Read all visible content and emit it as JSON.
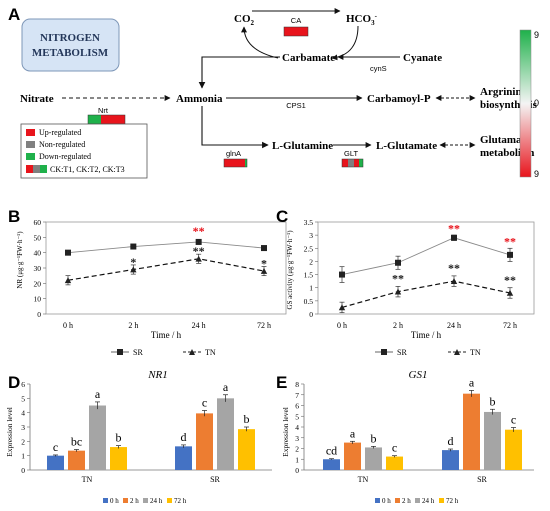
{
  "panel_a": {
    "label": "A",
    "title_line1": "NITROGEN",
    "title_line2": "METABOLISM",
    "nodes": {
      "co2": "CO",
      "co2_sub": "2",
      "hco3": "HCO",
      "hco3_sub": "3",
      "hco3_sup": "-",
      "carbamate": "Carbamate",
      "cyanate": "Cyanate",
      "nitrate": "Nitrate",
      "ammonia": "Ammonia",
      "carbamoyl_p": "Carbamoyl-P",
      "arginine_1": "Argrinine",
      "arginine_2": "biosynthesis",
      "l_glutamine": "L-Glutamine",
      "l_glutamate": "L-Glutamate",
      "glutamate_1": "Glutamate",
      "glutamate_2": "metabolism"
    },
    "enzymes": {
      "ca": "CA",
      "cyns": "cynS",
      "nrt": "Nrt",
      "cps1": "CPS1",
      "glna": "glnA",
      "glt": "GLT"
    },
    "legend": {
      "up": "Up-regulated",
      "non": "Non-regulated",
      "down": "Down-regulated",
      "comparisons": "CK:T1, CK:T2, CK:T3"
    },
    "colorbar": {
      "top": "9",
      "mid": "0",
      "bottom": "9"
    },
    "colors": {
      "up": "#e8141c",
      "non": "#808080",
      "down": "#1fb14b"
    }
  },
  "chart_b": {
    "label": "B",
    "type": "line",
    "ylabel": "NR (μg·g⁻¹FW·h⁻¹)",
    "xlabel": "Time / h",
    "categories": [
      "0 h",
      "2 h",
      "24 h",
      "72 h"
    ],
    "yticks": [
      "0",
      "10",
      "20",
      "30",
      "40",
      "50",
      "60"
    ],
    "ylim": [
      0,
      60
    ],
    "series": [
      {
        "name": "SR",
        "values": [
          40,
          44,
          47,
          43
        ],
        "errors": [
          1,
          1,
          1.5,
          1.2
        ]
      },
      {
        "name": "TN",
        "values": [
          22,
          29,
          36,
          28
        ],
        "errors": [
          3,
          3,
          3,
          3
        ]
      }
    ],
    "annotations": [
      {
        "cat": "24 h",
        "text": "**",
        "color": "#e8141c",
        "y": 54
      },
      {
        "cat": "2 h",
        "text": "*",
        "color": "#222222",
        "y": 34
      },
      {
        "cat": "24 h",
        "text": "**",
        "color": "#222222",
        "y": 41
      },
      {
        "cat": "72 h",
        "text": "*",
        "color": "#222222",
        "y": 33
      }
    ],
    "legend_placement": "bottom"
  },
  "chart_c": {
    "label": "C",
    "type": "line",
    "ylabel": "GS activity (μg·g⁻¹FW·h⁻¹)",
    "xlabel": "Time / h",
    "categories": [
      "0 h",
      "2 h",
      "24 h",
      "72 h"
    ],
    "yticks": [
      "0",
      "0.5",
      "1",
      "1.5",
      "2",
      "2.5",
      "3",
      "3.5"
    ],
    "ylim": [
      0,
      3.5
    ],
    "series": [
      {
        "name": "SR",
        "values": [
          1.5,
          1.95,
          2.9,
          2.25
        ],
        "errors": [
          0.3,
          0.25,
          0.1,
          0.25
        ]
      },
      {
        "name": "TN",
        "values": [
          0.25,
          0.85,
          1.25,
          0.8
        ],
        "errors": [
          0.2,
          0.2,
          0.2,
          0.2
        ]
      }
    ],
    "annotations": [
      {
        "cat": "24 h",
        "text": "**",
        "color": "#e8141c",
        "y": 3.25
      },
      {
        "cat": "72 h",
        "text": "**",
        "color": "#e8141c",
        "y": 2.75
      },
      {
        "cat": "2 h",
        "text": "**",
        "color": "#222222",
        "y": 1.35
      },
      {
        "cat": "24 h",
        "text": "**",
        "color": "#222222",
        "y": 1.75
      },
      {
        "cat": "72 h",
        "text": "**",
        "color": "#222222",
        "y": 1.3
      }
    ],
    "legend_placement": "bottom"
  },
  "chart_d": {
    "label": "D",
    "type": "bar",
    "title": "NR1",
    "ylabel": "Expression level",
    "groups": [
      "TN",
      "SR"
    ],
    "yticks": [
      "0",
      "1",
      "2",
      "3",
      "4",
      "5",
      "6"
    ],
    "ylim": [
      0,
      6
    ],
    "series": [
      {
        "name": "0 h",
        "color": "#4472c4",
        "values": [
          1.0,
          1.65
        ],
        "errors": [
          0.05,
          0.1
        ],
        "letters": [
          "c",
          "d"
        ]
      },
      {
        "name": "2 h",
        "color": "#ed7d31",
        "values": [
          1.35,
          3.95
        ],
        "errors": [
          0.08,
          0.2
        ],
        "letters": [
          "bc",
          "c"
        ]
      },
      {
        "name": "24 h",
        "color": "#a5a5a5",
        "values": [
          4.5,
          5.0
        ],
        "errors": [
          0.25,
          0.25
        ],
        "letters": [
          "a",
          "a"
        ]
      },
      {
        "name": "72 h",
        "color": "#ffc000",
        "values": [
          1.6,
          2.85
        ],
        "errors": [
          0.1,
          0.15
        ],
        "letters": [
          "b",
          "b"
        ]
      }
    ],
    "legend_placement": "bottom"
  },
  "chart_e": {
    "label": "E",
    "type": "bar",
    "title": "GS1",
    "ylabel": "Expression level",
    "groups": [
      "TN",
      "SR"
    ],
    "yticks": [
      "0",
      "1",
      "2",
      "3",
      "4",
      "5",
      "6",
      "7",
      "8"
    ],
    "ylim": [
      0,
      8
    ],
    "series": [
      {
        "name": "0 h",
        "color": "#4472c4",
        "values": [
          1.0,
          1.85
        ],
        "errors": [
          0.05,
          0.1
        ],
        "letters": [
          "cd",
          "d"
        ]
      },
      {
        "name": "2 h",
        "color": "#ed7d31",
        "values": [
          2.55,
          7.1
        ],
        "errors": [
          0.12,
          0.3
        ],
        "letters": [
          "a",
          "a"
        ]
      },
      {
        "name": "24 h",
        "color": "#a5a5a5",
        "values": [
          2.1,
          5.4
        ],
        "errors": [
          0.1,
          0.25
        ],
        "letters": [
          "b",
          "b"
        ]
      },
      {
        "name": "72 h",
        "color": "#ffc000",
        "values": [
          1.25,
          3.75
        ],
        "errors": [
          0.08,
          0.2
        ],
        "letters": [
          "c",
          "c"
        ]
      }
    ],
    "legend_placement": "bottom"
  }
}
